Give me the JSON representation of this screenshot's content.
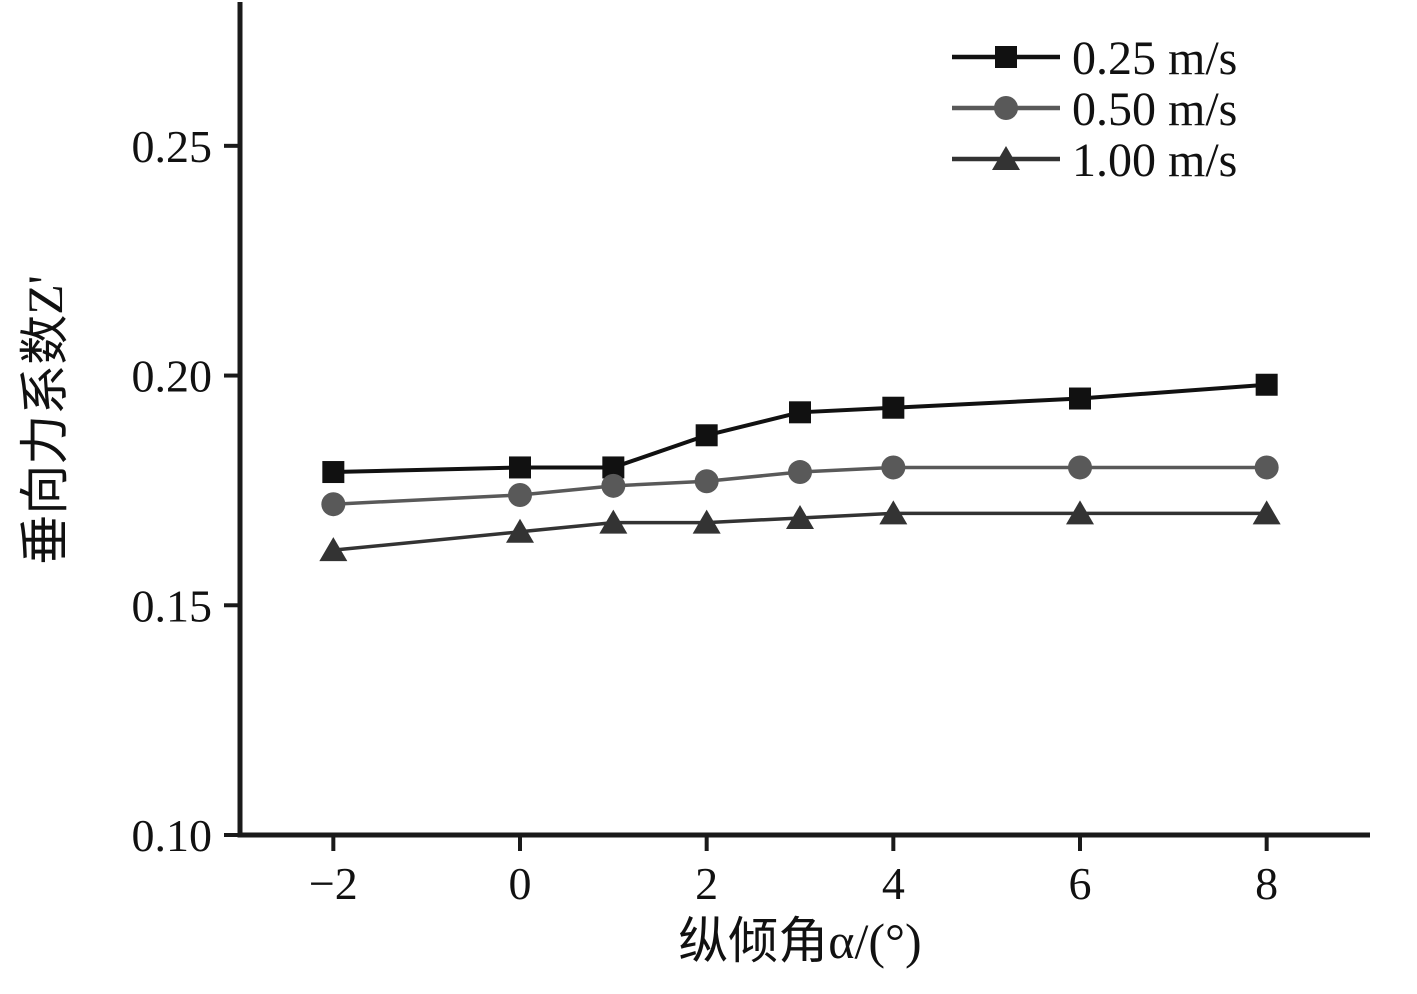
{
  "chart_data": {
    "type": "line",
    "title": "",
    "xlabel": "纵倾角α/(°)",
    "ylabel": "垂向力系数Z'",
    "x": [
      -2,
      0,
      1,
      2,
      3,
      4,
      6,
      8
    ],
    "xlim": [
      -3,
      9
    ],
    "ylim": [
      0.1,
      0.28
    ],
    "xticks": [
      -2,
      0,
      2,
      4,
      6,
      8
    ],
    "xtick_labels": [
      "−2",
      "0",
      "2",
      "4",
      "6",
      "8"
    ],
    "yticks": [
      0.1,
      0.15,
      0.2,
      0.25
    ],
    "ytick_labels": [
      "0.10",
      "0.15",
      "0.20",
      "0.25"
    ],
    "grid": false,
    "legend_position": "top-right",
    "axis_color": "#1a1a1a",
    "series": [
      {
        "name": "0.25 m/s",
        "marker": "square",
        "color": "#111111",
        "values": [
          0.179,
          0.18,
          0.18,
          0.187,
          0.192,
          0.193,
          0.195,
          0.198
        ]
      },
      {
        "name": "0.50 m/s",
        "marker": "circle",
        "color": "#595959",
        "values": [
          0.172,
          0.174,
          0.176,
          0.177,
          0.179,
          0.18,
          0.18,
          0.18
        ]
      },
      {
        "name": "1.00 m/s",
        "marker": "triangle",
        "color": "#333333",
        "values": [
          0.162,
          0.166,
          0.168,
          0.168,
          0.169,
          0.17,
          0.17,
          0.17
        ]
      }
    ]
  }
}
